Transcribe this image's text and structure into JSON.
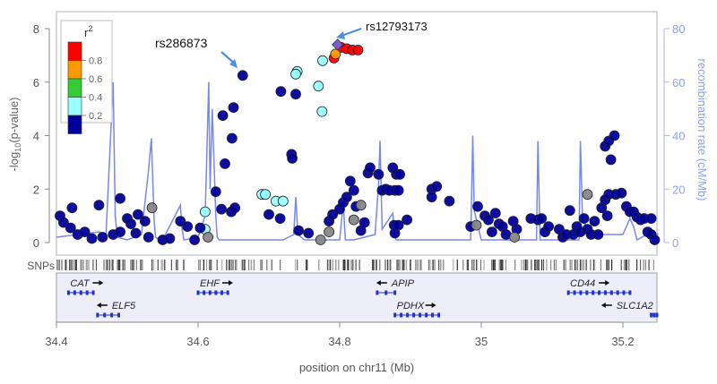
{
  "chart_data": {
    "type": "scatter",
    "title": "",
    "xlabel": "position on chr11 (Mb)",
    "ylabel": "-log10(p-value)",
    "y2label": "recombination rate (cM/Mb)",
    "xlim": [
      34.4,
      35.25
    ],
    "ylim": [
      0,
      8
    ],
    "y2lim": [
      0,
      80
    ],
    "x_ticks": [
      "34.4",
      "34.6",
      "34.8",
      "35",
      "35.2"
    ],
    "y_ticks": [
      "0",
      "2",
      "4",
      "6",
      "8"
    ],
    "y2_ticks": [
      "0",
      "20",
      "40",
      "60",
      "80"
    ],
    "grid": false,
    "legend": {
      "title": "r²",
      "position": "top-left",
      "entries": [
        {
          "range": "0.8-1.0",
          "color": "#ff0000"
        },
        {
          "range": "0.6-0.8",
          "color": "#ff9900"
        },
        {
          "range": "0.4-0.6",
          "color": "#33cc33"
        },
        {
          "range": "0.2-0.4",
          "color": "#99ffff"
        },
        {
          "range": "0.0-0.2",
          "color": "#000099"
        }
      ],
      "tick_labels": [
        "0.8",
        "0.6",
        "0.4",
        "0.2"
      ]
    },
    "annotations": [
      {
        "label": "rs12793173",
        "x": 34.797,
        "y": 7.4,
        "marker": "diamond",
        "color": "#7b5ccc"
      },
      {
        "label": "rs286873",
        "x": 34.663,
        "y": 6.25
      }
    ],
    "series": [
      {
        "name": "r2 >= 0.8",
        "color": "#ff0000",
        "points": [
          [
            34.802,
            7.3
          ],
          [
            34.81,
            7.25
          ],
          [
            34.818,
            7.2
          ],
          [
            34.826,
            7.2
          ],
          [
            34.792,
            6.9
          ]
        ]
      },
      {
        "name": "r2 0.6-0.8",
        "color": "#ff9900",
        "points": [
          [
            34.794,
            7.05
          ]
        ]
      },
      {
        "name": "r2 0.2-0.4",
        "color": "#99ffff",
        "points": [
          [
            34.776,
            6.8
          ],
          [
            34.74,
            6.4
          ],
          [
            34.738,
            6.3
          ],
          [
            34.77,
            5.85
          ],
          [
            34.775,
            4.9
          ],
          [
            34.69,
            1.8
          ],
          [
            34.695,
            1.8
          ],
          [
            34.71,
            1.55
          ],
          [
            34.72,
            1.55
          ],
          [
            34.61,
            1.15
          ],
          [
            34.61,
            0.5
          ]
        ]
      },
      {
        "name": "r2 < 0.2",
        "color": "#000099",
        "points": [
          [
            34.663,
            6.25
          ],
          [
            34.717,
            5.65
          ],
          [
            34.738,
            5.55
          ],
          [
            34.65,
            5.05
          ],
          [
            34.635,
            4.75
          ],
          [
            34.648,
            3.9
          ],
          [
            34.638,
            2.95
          ],
          [
            34.732,
            3.3
          ],
          [
            34.733,
            3.15
          ],
          [
            34.625,
            1.9
          ],
          [
            34.633,
            1.25
          ],
          [
            34.647,
            1.15
          ],
          [
            34.652,
            1.3
          ],
          [
            34.7,
            1.05
          ],
          [
            34.716,
            0.9
          ],
          [
            34.756,
            0.35
          ],
          [
            34.742,
            0.45
          ],
          [
            34.603,
            0.55
          ],
          [
            34.405,
            1.0
          ],
          [
            34.41,
            0.75
          ],
          [
            34.422,
            1.3
          ],
          [
            34.42,
            0.55
          ],
          [
            34.43,
            0.3
          ],
          [
            34.44,
            0.4
          ],
          [
            34.45,
            0.15
          ],
          [
            34.465,
            0.2
          ],
          [
            34.48,
            0.3
          ],
          [
            34.49,
            0.4
          ],
          [
            34.5,
            0.9
          ],
          [
            34.505,
            0.7
          ],
          [
            34.512,
            0.35
          ],
          [
            34.525,
            0.8
          ],
          [
            34.53,
            0.2
          ],
          [
            34.55,
            0.1
          ],
          [
            34.56,
            0.15
          ],
          [
            34.575,
            0.8
          ],
          [
            34.585,
            0.6
          ],
          [
            34.595,
            0.1
          ],
          [
            34.46,
            1.4
          ],
          [
            34.49,
            1.65
          ],
          [
            34.515,
            1.05
          ],
          [
            34.785,
            0.8
          ],
          [
            34.79,
            1.05
          ],
          [
            34.8,
            1.25
          ],
          [
            34.805,
            1.5
          ],
          [
            34.81,
            1.7
          ],
          [
            34.815,
            2.3
          ],
          [
            34.82,
            1.95
          ],
          [
            34.823,
            1.35
          ],
          [
            34.83,
            0.45
          ],
          [
            34.835,
            0.75
          ],
          [
            34.84,
            2.6
          ],
          [
            34.843,
            2.8
          ],
          [
            34.855,
            2.55
          ],
          [
            34.86,
            1.95
          ],
          [
            34.865,
            2.0
          ],
          [
            34.87,
            1.95
          ],
          [
            34.875,
            2.8
          ],
          [
            34.878,
            1.95
          ],
          [
            34.883,
            1.95
          ],
          [
            34.88,
            2.55
          ],
          [
            34.885,
            2.55
          ],
          [
            34.877,
            0.65
          ],
          [
            34.878,
            0.35
          ],
          [
            34.883,
            0.65
          ],
          [
            34.895,
            0.85
          ],
          [
            34.93,
            2.0
          ],
          [
            34.937,
            2.1
          ],
          [
            34.93,
            1.7
          ],
          [
            34.955,
            1.55
          ],
          [
            34.985,
            0.6
          ],
          [
            34.995,
            1.35
          ],
          [
            35.005,
            1.0
          ],
          [
            35.01,
            0.85
          ],
          [
            35.015,
            0.4
          ],
          [
            35.02,
            1.1
          ],
          [
            35.025,
            0.7
          ],
          [
            35.03,
            0.6
          ],
          [
            35.035,
            0.3
          ],
          [
            35.045,
            0.8
          ],
          [
            35.05,
            0.5
          ],
          [
            35.07,
            0.9
          ],
          [
            35.08,
            0.85
          ],
          [
            35.085,
            0.9
          ],
          [
            35.09,
            0.4
          ],
          [
            35.095,
            0.6
          ],
          [
            35.11,
            0.5
          ],
          [
            35.115,
            0.2
          ],
          [
            35.12,
            0.3
          ],
          [
            35.125,
            1.2
          ],
          [
            35.13,
            0.3
          ],
          [
            35.135,
            0.6
          ],
          [
            35.14,
            0.4
          ],
          [
            35.145,
            0.9
          ],
          [
            35.15,
            0.5
          ],
          [
            35.155,
            0.3
          ],
          [
            35.16,
            0.8
          ],
          [
            35.165,
            0.3
          ],
          [
            35.17,
            1.3
          ],
          [
            35.175,
            1.6
          ],
          [
            35.178,
            1.0
          ],
          [
            35.175,
            3.6
          ],
          [
            35.18,
            3.8
          ],
          [
            35.188,
            4.0
          ],
          [
            35.183,
            3.1
          ],
          [
            35.18,
            1.8
          ],
          [
            35.19,
            1.8
          ],
          [
            35.198,
            1.85
          ],
          [
            35.205,
            1.35
          ],
          [
            35.21,
            1.15
          ],
          [
            35.215,
            1.15
          ],
          [
            35.22,
            0.95
          ],
          [
            35.225,
            0.85
          ],
          [
            35.23,
            0.9
          ],
          [
            35.235,
            0.4
          ],
          [
            35.24,
            0.9
          ],
          [
            35.24,
            0.3
          ],
          [
            35.245,
            0.1
          ]
        ]
      },
      {
        "name": "no LD info",
        "color": "#888888",
        "points": [
          [
            34.535,
            1.3
          ],
          [
            34.614,
            0.2
          ],
          [
            34.773,
            0.1
          ],
          [
            34.785,
            0.4
          ],
          [
            34.82,
            0.85
          ],
          [
            34.83,
            1.4
          ],
          [
            34.993,
            0.65
          ],
          [
            35.047,
            0.2
          ],
          [
            35.15,
            1.8
          ]
        ]
      }
    ],
    "recombination_rate": {
      "color": "#7788ee",
      "x": [
        34.4,
        34.46,
        34.47,
        34.48,
        34.483,
        34.486,
        34.5,
        34.52,
        34.53,
        34.534,
        34.538,
        34.54,
        34.545,
        34.55,
        34.575,
        34.577,
        34.58,
        34.6,
        34.61,
        34.615,
        34.617,
        34.62,
        34.625,
        34.627,
        34.63,
        34.64,
        34.7,
        34.72,
        34.735,
        34.738,
        34.741,
        34.75,
        34.78,
        34.8,
        34.805,
        34.808,
        34.82,
        34.85,
        34.855,
        34.857,
        34.86,
        34.875,
        34.877,
        34.88,
        34.9,
        34.985,
        34.988,
        34.99,
        35.0,
        35.078,
        35.08,
        35.083,
        35.1,
        35.138,
        35.14,
        35.143,
        35.16,
        35.2,
        35.21,
        35.215,
        35.22,
        35.24,
        35.25
      ],
      "y": [
        2,
        4,
        3,
        60,
        10,
        2,
        1,
        3,
        27,
        39,
        8,
        2,
        1,
        1,
        14,
        6,
        1,
        2,
        10,
        60,
        20,
        50,
        10,
        2,
        1,
        1,
        1,
        1,
        3,
        17,
        3,
        1,
        1,
        1,
        15,
        1,
        1,
        3,
        22,
        38,
        5,
        11,
        3,
        1,
        1,
        1,
        40,
        12,
        1,
        1,
        38,
        1,
        1,
        1,
        38,
        8,
        3,
        3,
        9,
        6,
        1,
        4,
        3
      ]
    },
    "gene_track": {
      "genes": [
        {
          "name": "CAT",
          "strand": "+",
          "start": 34.417,
          "end": 34.452,
          "row": 0
        },
        {
          "name": "ELF5",
          "strand": "-",
          "start": 34.458,
          "end": 34.488,
          "row": 1
        },
        {
          "name": "EHF",
          "strand": "+",
          "start": 34.6,
          "end": 34.642,
          "row": 0
        },
        {
          "name": "APIP",
          "strand": "-",
          "start": 34.853,
          "end": 34.878,
          "row": 0
        },
        {
          "name": "PDHX",
          "strand": "+",
          "start": 34.878,
          "end": 34.94,
          "row": 1
        },
        {
          "name": "CD44",
          "strand": "+",
          "start": 35.123,
          "end": 35.21,
          "row": 0
        },
        {
          "name": "SLC1A2",
          "strand": "-",
          "start": 35.24,
          "end": 35.25,
          "row": 1
        }
      ]
    }
  },
  "labels": {
    "ylabel_main": "-log",
    "ylabel_sub": "10",
    "ylabel_rest": "(p-value)",
    "y2label": "recombination rate (cM/Mb)",
    "xlabel": "position on chr11 (Mb)",
    "snps": "SNPs",
    "legend_title": "r",
    "legend_sup": "2",
    "ann_top": "rs12793173",
    "ann_left": "rs286873"
  }
}
